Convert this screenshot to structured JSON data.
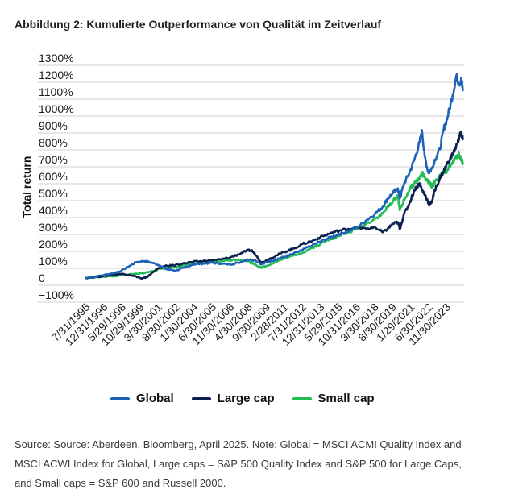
{
  "title": "Abbildung 2: Kumulierte Outperformance von Qualität im Zeitverlauf",
  "footnote": "Source: Source: Aberdeen, Bloomberg, April 2025. Note: Global = MSCI ACMI Quality Index and MSCI ACWI Index for Global, Large caps = S&P 500 Quality Index and S&P 500 for Large Caps, and Small caps = S&P 600 and Russell 2000.",
  "colors": {
    "global": "#1d62b8",
    "large_cap": "#0c1f4e",
    "small_cap": "#22bb55",
    "grid": "#d2d2d2"
  },
  "chart_data": {
    "type": "line",
    "title": "Abbildung 2: Kumulierte Outperformance von Qualität im Zeitverlauf",
    "xlabel": "",
    "ylabel": "Total return",
    "ylim": [
      -100,
      1300
    ],
    "yticks": [
      -100,
      0,
      100,
      200,
      300,
      400,
      500,
      600,
      700,
      800,
      900,
      1000,
      1100,
      1200,
      1300
    ],
    "ytick_labels": [
      "−100%",
      "0",
      "100%",
      "200%",
      "300%",
      "400%",
      "500%",
      "600%",
      "700%",
      "800%",
      "900%",
      "1000%",
      "1100%",
      "1200%",
      "1300%"
    ],
    "xlim": [
      1995.5,
      2025.3
    ],
    "xticks": [
      1995.58,
      1996.99,
      1998.41,
      1999.83,
      2001.25,
      2002.66,
      2004.08,
      2005.5,
      2006.91,
      2008.33,
      2009.75,
      2011.16,
      2012.58,
      2014.0,
      2015.41,
      2016.83,
      2018.25,
      2019.66,
      2021.08,
      2022.5,
      2023.91
    ],
    "xtick_labels": [
      "7/31/1995",
      "12/31/1996",
      "5/29/1998",
      "10/29/1999",
      "3/30/2001",
      "8/30/2002",
      "1/30/2004",
      "6/30/2005",
      "11/30/2006",
      "4/30/2008",
      "9/30/2009",
      "2/28/2011",
      "7/31/2012",
      "12/31/2013",
      "5/29/2015",
      "10/31/2016",
      "3/30/2018",
      "8/30/2019",
      "1/29/2021",
      "6/30/2022",
      "11/30/2023"
    ],
    "legend_position": "bottom",
    "series": [
      {
        "name": "Global",
        "x": [
          1995.6,
          1996.5,
          1997.5,
          1998.3,
          1999.0,
          1999.6,
          2000.2,
          2000.8,
          2001.4,
          2002.0,
          2002.7,
          2003.3,
          2004.0,
          2004.8,
          2005.5,
          2006.2,
          2006.9,
          2007.6,
          2008.3,
          2008.9,
          2009.4,
          2009.9,
          2010.5,
          2011.2,
          2011.8,
          2012.6,
          2013.4,
          2014.0,
          2014.8,
          2015.5,
          2016.2,
          2016.9,
          2017.6,
          2018.3,
          2018.9,
          2019.3,
          2019.7,
          2020.1,
          2020.25,
          2020.6,
          2021.0,
          2021.4,
          2021.8,
          2022.0,
          2022.2,
          2022.5,
          2022.8,
          2023.0,
          2023.4,
          2023.7,
          2024.0,
          2024.4,
          2024.7,
          2024.9,
          2025.1,
          2025.2
        ],
        "values": [
          0,
          10,
          25,
          40,
          70,
          95,
          100,
          90,
          75,
          50,
          45,
          60,
          80,
          85,
          90,
          85,
          80,
          90,
          110,
          105,
          80,
          95,
          110,
          125,
          140,
          165,
          195,
          215,
          240,
          260,
          275,
          300,
          340,
          380,
          420,
          470,
          500,
          530,
          470,
          560,
          620,
          700,
          800,
          870,
          720,
          620,
          650,
          700,
          760,
          880,
          950,
          1080,
          1200,
          1150,
          1170,
          1110
        ]
      },
      {
        "name": "Large cap",
        "x": [
          1995.6,
          1996.5,
          1997.5,
          1998.3,
          1999.0,
          1999.7,
          2000.0,
          2000.5,
          2001.1,
          2001.8,
          2002.5,
          2003.2,
          2004.0,
          2004.8,
          2005.5,
          2006.2,
          2006.9,
          2007.6,
          2008.2,
          2008.6,
          2009.0,
          2009.4,
          2009.9,
          2010.5,
          2011.2,
          2011.8,
          2012.6,
          2013.4,
          2014.0,
          2014.8,
          2015.5,
          2016.2,
          2016.9,
          2017.6,
          2018.3,
          2018.9,
          2019.3,
          2019.7,
          2020.1,
          2020.25,
          2020.6,
          2021.0,
          2021.4,
          2021.8,
          2022.0,
          2022.3,
          2022.6,
          2022.8,
          2023.0,
          2023.4,
          2023.7,
          2024.0,
          2024.4,
          2024.8,
          2025.0,
          2025.2
        ],
        "values": [
          0,
          8,
          15,
          25,
          20,
          5,
          -5,
          10,
          50,
          70,
          75,
          85,
          95,
          100,
          105,
          110,
          120,
          140,
          160,
          165,
          130,
          90,
          110,
          130,
          155,
          170,
          200,
          220,
          240,
          265,
          280,
          290,
          300,
          290,
          300,
          270,
          290,
          320,
          330,
          290,
          380,
          440,
          520,
          560,
          520,
          480,
          430,
          460,
          520,
          590,
          630,
          680,
          730,
          800,
          860,
          820
        ]
      },
      {
        "name": "Small cap",
        "x": [
          1995.6,
          1996.5,
          1997.5,
          1998.3,
          1999.0,
          1999.7,
          2000.2,
          2000.8,
          2001.4,
          2002.0,
          2002.7,
          2003.3,
          2004.0,
          2004.8,
          2005.5,
          2006.2,
          2006.9,
          2007.6,
          2008.3,
          2008.9,
          2009.4,
          2009.9,
          2010.5,
          2011.2,
          2011.8,
          2012.6,
          2013.4,
          2014.0,
          2014.8,
          2015.5,
          2016.2,
          2016.9,
          2017.6,
          2018.3,
          2018.9,
          2019.3,
          2019.7,
          2020.1,
          2020.25,
          2020.6,
          2021.0,
          2021.4,
          2021.8,
          2022.0,
          2022.3,
          2022.6,
          2022.8,
          2023.0,
          2023.4,
          2023.7,
          2024.0,
          2024.4,
          2024.7,
          2024.9,
          2025.1,
          2025.2
        ],
        "values": [
          0,
          5,
          10,
          15,
          20,
          25,
          30,
          40,
          55,
          60,
          65,
          75,
          85,
          90,
          95,
          100,
          105,
          110,
          100,
          80,
          60,
          75,
          95,
          115,
          130,
          150,
          180,
          200,
          230,
          250,
          270,
          290,
          320,
          350,
          380,
          420,
          450,
          490,
          400,
          460,
          520,
          560,
          590,
          620,
          580,
          560,
          540,
          570,
          600,
          620,
          640,
          680,
          720,
          730,
          700,
          680
        ]
      }
    ]
  }
}
